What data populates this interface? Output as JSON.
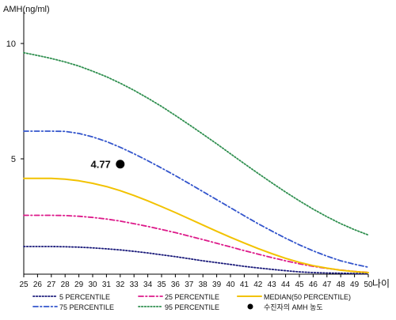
{
  "chart_data": {
    "type": "line",
    "ylabel": "AMH(ng/ml)",
    "xlabel": "나이",
    "x": [
      25,
      26,
      27,
      28,
      29,
      30,
      31,
      32,
      33,
      34,
      35,
      36,
      37,
      38,
      39,
      40,
      41,
      42,
      43,
      44,
      45,
      46,
      47,
      48,
      49,
      50
    ],
    "x_ticks": [
      "25",
      "26",
      "27",
      "28",
      "29",
      "30",
      "31",
      "32",
      "33",
      "34",
      "35",
      "36",
      "37",
      "38",
      "39",
      "40",
      "41",
      "42",
      "43",
      "44",
      "45",
      "46",
      "47",
      "48",
      "49",
      "50"
    ],
    "y_ticks": [
      "5",
      "10"
    ],
    "ylim": [
      0,
      11.2
    ],
    "xlim": [
      25,
      50
    ],
    "grid": false,
    "legend_position": "bottom",
    "series": [
      {
        "name": "5 PERCENTILE",
        "color": "#1a1a7a",
        "dash": "dot",
        "values": [
          1.2,
          1.2,
          1.2,
          1.19,
          1.17,
          1.14,
          1.1,
          1.05,
          0.99,
          0.92,
          0.84,
          0.76,
          0.67,
          0.58,
          0.5,
          0.42,
          0.34,
          0.27,
          0.21,
          0.15,
          0.1,
          0.07,
          0.05,
          0.04,
          0.03,
          0.02
        ]
      },
      {
        "name": "75 PERCENTILE",
        "color": "#3355cc",
        "dash": "dashdot",
        "values": [
          6.2,
          6.2,
          6.2,
          6.19,
          6.1,
          5.95,
          5.75,
          5.5,
          5.22,
          4.92,
          4.6,
          4.27,
          3.93,
          3.58,
          3.23,
          2.88,
          2.53,
          2.19,
          1.87,
          1.56,
          1.27,
          1.01,
          0.78,
          0.58,
          0.43,
          0.3
        ]
      },
      {
        "name": "25 PERCENTILE",
        "color": "#dd1a8a",
        "dash": "dashdot",
        "values": [
          2.55,
          2.55,
          2.55,
          2.54,
          2.51,
          2.46,
          2.39,
          2.3,
          2.19,
          2.07,
          1.94,
          1.8,
          1.65,
          1.5,
          1.34,
          1.18,
          1.02,
          0.87,
          0.72,
          0.58,
          0.45,
          0.34,
          0.25,
          0.18,
          0.12,
          0.08
        ]
      },
      {
        "name": "95 PERCENTILE",
        "color": "#2f8f4f",
        "dash": "dot",
        "values": [
          9.6,
          9.48,
          9.35,
          9.2,
          9.02,
          8.8,
          8.56,
          8.28,
          7.97,
          7.63,
          7.27,
          6.88,
          6.48,
          6.07,
          5.65,
          5.22,
          4.79,
          4.37,
          3.96,
          3.56,
          3.18,
          2.82,
          2.49,
          2.19,
          1.93,
          1.7
        ]
      },
      {
        "name": "MEDIAN(50 PERCENTILE)",
        "color": "#f2c200",
        "dash": "solid",
        "values": [
          4.15,
          4.15,
          4.15,
          4.12,
          4.05,
          3.94,
          3.8,
          3.62,
          3.41,
          3.18,
          2.93,
          2.67,
          2.4,
          2.13,
          1.86,
          1.6,
          1.35,
          1.11,
          0.89,
          0.69,
          0.51,
          0.37,
          0.26,
          0.17,
          0.11,
          0.07
        ]
      }
    ],
    "point": {
      "name": "수진자의 AMH 농도",
      "x": 32,
      "y": 4.77,
      "label": "4.77",
      "color": "#000000"
    }
  }
}
